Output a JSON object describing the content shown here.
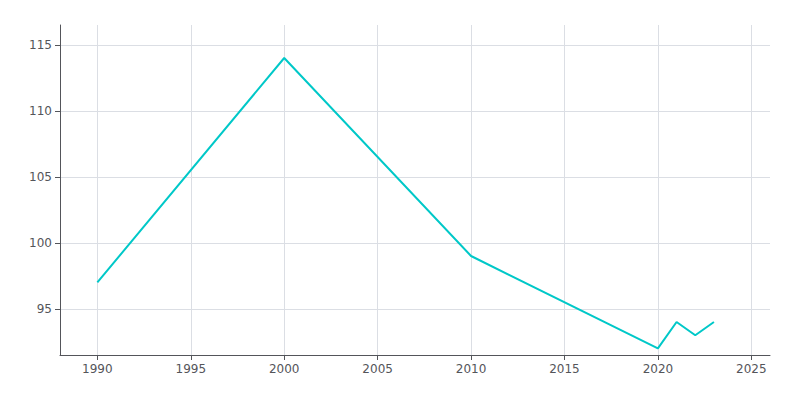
{
  "chart_data": {
    "type": "line",
    "x": [
      1990,
      2000,
      2010,
      2020,
      2021,
      2022,
      2023
    ],
    "values": [
      97,
      114,
      99,
      92,
      94,
      93,
      94
    ],
    "color": "#00c8c8",
    "xlim": [
      1988,
      2026
    ],
    "ylim": [
      91.5,
      116.5
    ],
    "xticks": [
      1990,
      1995,
      2000,
      2005,
      2010,
      2015,
      2020,
      2025
    ],
    "yticks": [
      95,
      100,
      105,
      110,
      115
    ],
    "grid": true
  }
}
